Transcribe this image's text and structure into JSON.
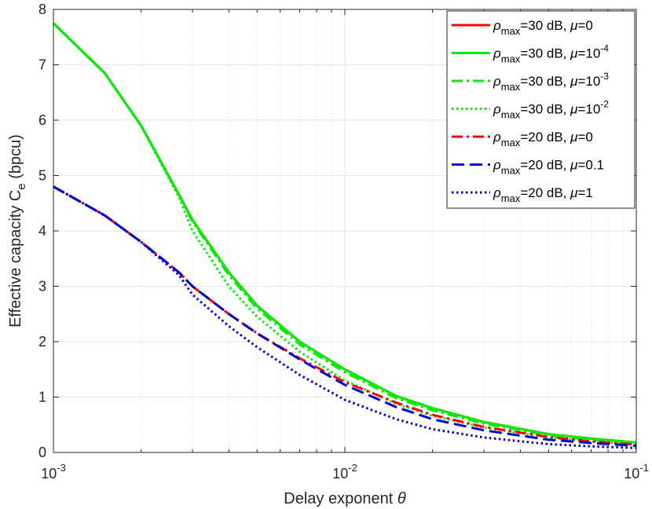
{
  "chart_data": {
    "type": "line",
    "x_scale": "log",
    "grid": true,
    "legend_placement": "top-right",
    "xlabel": {
      "prefix": "Delay exponent ",
      "symbol": "θ"
    },
    "ylabel": {
      "prefix": "Effective capacity C",
      "sub": "e",
      "suffix": " (bpcu)"
    },
    "xlim": [
      0.001,
      0.1
    ],
    "ylim": [
      0,
      8
    ],
    "x_ticks": [
      {
        "value": 0.001,
        "base": "10",
        "exp": "-3"
      },
      {
        "value": 0.01,
        "base": "10",
        "exp": "-2"
      },
      {
        "value": 0.1,
        "base": "10",
        "exp": "-1"
      }
    ],
    "y_ticks": [
      "0",
      "1",
      "2",
      "3",
      "4",
      "5",
      "6",
      "7",
      "8"
    ],
    "series": [
      {
        "name": {
          "rho": "ρ",
          "sub": "max",
          "mid": "=30 dB, ",
          "mu": "μ",
          "val": "=0",
          "exp": ""
        },
        "color": "#ff0000",
        "dash": "solid",
        "x": [
          0.001,
          0.0015,
          0.002,
          0.0027,
          0.003,
          0.004,
          0.005,
          0.007,
          0.01,
          0.015,
          0.02,
          0.03,
          0.05,
          0.07,
          0.1
        ],
        "y": [
          7.75,
          6.85,
          5.9,
          4.65,
          4.2,
          3.25,
          2.65,
          2.0,
          1.5,
          1.02,
          0.8,
          0.55,
          0.33,
          0.25,
          0.18
        ]
      },
      {
        "name": {
          "rho": "ρ",
          "sub": "max",
          "mid": "=30 dB, ",
          "mu": "μ",
          "val": "=10",
          "exp": "-4"
        },
        "color": "#00ee00",
        "dash": "solid",
        "x": [
          0.001,
          0.0015,
          0.002,
          0.0027,
          0.003,
          0.004,
          0.005,
          0.007,
          0.01,
          0.015,
          0.02,
          0.03,
          0.05,
          0.07,
          0.1
        ],
        "y": [
          7.75,
          6.85,
          5.9,
          4.65,
          4.2,
          3.25,
          2.65,
          2.0,
          1.5,
          1.02,
          0.8,
          0.55,
          0.33,
          0.25,
          0.18
        ]
      },
      {
        "name": {
          "rho": "ρ",
          "sub": "max",
          "mid": "=30 dB, ",
          "mu": "μ",
          "val": "=10",
          "exp": "-3"
        },
        "color": "#00ee00",
        "dash": "dashdot",
        "x": [
          0.001,
          0.0015,
          0.002,
          0.0027,
          0.003,
          0.004,
          0.005,
          0.007,
          0.01,
          0.015,
          0.02,
          0.03,
          0.05,
          0.07,
          0.1
        ],
        "y": [
          7.75,
          6.85,
          5.9,
          4.65,
          4.17,
          3.2,
          2.6,
          1.95,
          1.45,
          0.98,
          0.76,
          0.52,
          0.31,
          0.23,
          0.16
        ]
      },
      {
        "name": {
          "rho": "ρ",
          "sub": "max",
          "mid": "=30 dB, ",
          "mu": "μ",
          "val": "=10",
          "exp": "-2"
        },
        "color": "#00ee00",
        "dash": "dotted",
        "x": [
          0.001,
          0.0015,
          0.002,
          0.0027,
          0.003,
          0.004,
          0.005,
          0.007,
          0.01,
          0.015,
          0.02,
          0.03,
          0.05,
          0.07,
          0.1
        ],
        "y": [
          7.75,
          6.85,
          5.9,
          4.6,
          4.0,
          3.0,
          2.45,
          1.82,
          1.3,
          0.88,
          0.66,
          0.45,
          0.27,
          0.2,
          0.14
        ]
      },
      {
        "name": {
          "rho": "ρ",
          "sub": "max",
          "mid": "=20 dB, ",
          "mu": "μ",
          "val": "=0",
          "exp": ""
        },
        "color": "#ff0000",
        "dash": "dashdot",
        "x": [
          0.001,
          0.0015,
          0.002,
          0.0027,
          0.003,
          0.004,
          0.005,
          0.007,
          0.01,
          0.015,
          0.02,
          0.03,
          0.05,
          0.07,
          0.1
        ],
        "y": [
          4.8,
          4.28,
          3.8,
          3.25,
          3.0,
          2.5,
          2.15,
          1.7,
          1.27,
          0.9,
          0.68,
          0.46,
          0.28,
          0.2,
          0.14
        ]
      },
      {
        "name": {
          "rho": "ρ",
          "sub": "max",
          "mid": "=20 dB, ",
          "mu": "μ",
          "val": "=0.1",
          "exp": ""
        },
        "color": "#0000dd",
        "dash": "dashed",
        "x": [
          0.001,
          0.0015,
          0.002,
          0.0027,
          0.003,
          0.004,
          0.005,
          0.007,
          0.01,
          0.015,
          0.02,
          0.03,
          0.05,
          0.07,
          0.1
        ],
        "y": [
          4.8,
          4.28,
          3.8,
          3.25,
          3.0,
          2.5,
          2.15,
          1.68,
          1.22,
          0.82,
          0.6,
          0.4,
          0.23,
          0.17,
          0.12
        ]
      },
      {
        "name": {
          "rho": "ρ",
          "sub": "max",
          "mid": "=20 dB, ",
          "mu": "μ",
          "val": "=1",
          "exp": ""
        },
        "color": "#0000dd",
        "dash": "dotted",
        "x": [
          0.001,
          0.0015,
          0.002,
          0.0027,
          0.003,
          0.004,
          0.005,
          0.007,
          0.01,
          0.015,
          0.02,
          0.03,
          0.05,
          0.07,
          0.1
        ],
        "y": [
          4.8,
          4.28,
          3.8,
          3.2,
          2.85,
          2.28,
          1.9,
          1.4,
          0.95,
          0.6,
          0.42,
          0.27,
          0.15,
          0.11,
          0.08
        ]
      }
    ]
  }
}
